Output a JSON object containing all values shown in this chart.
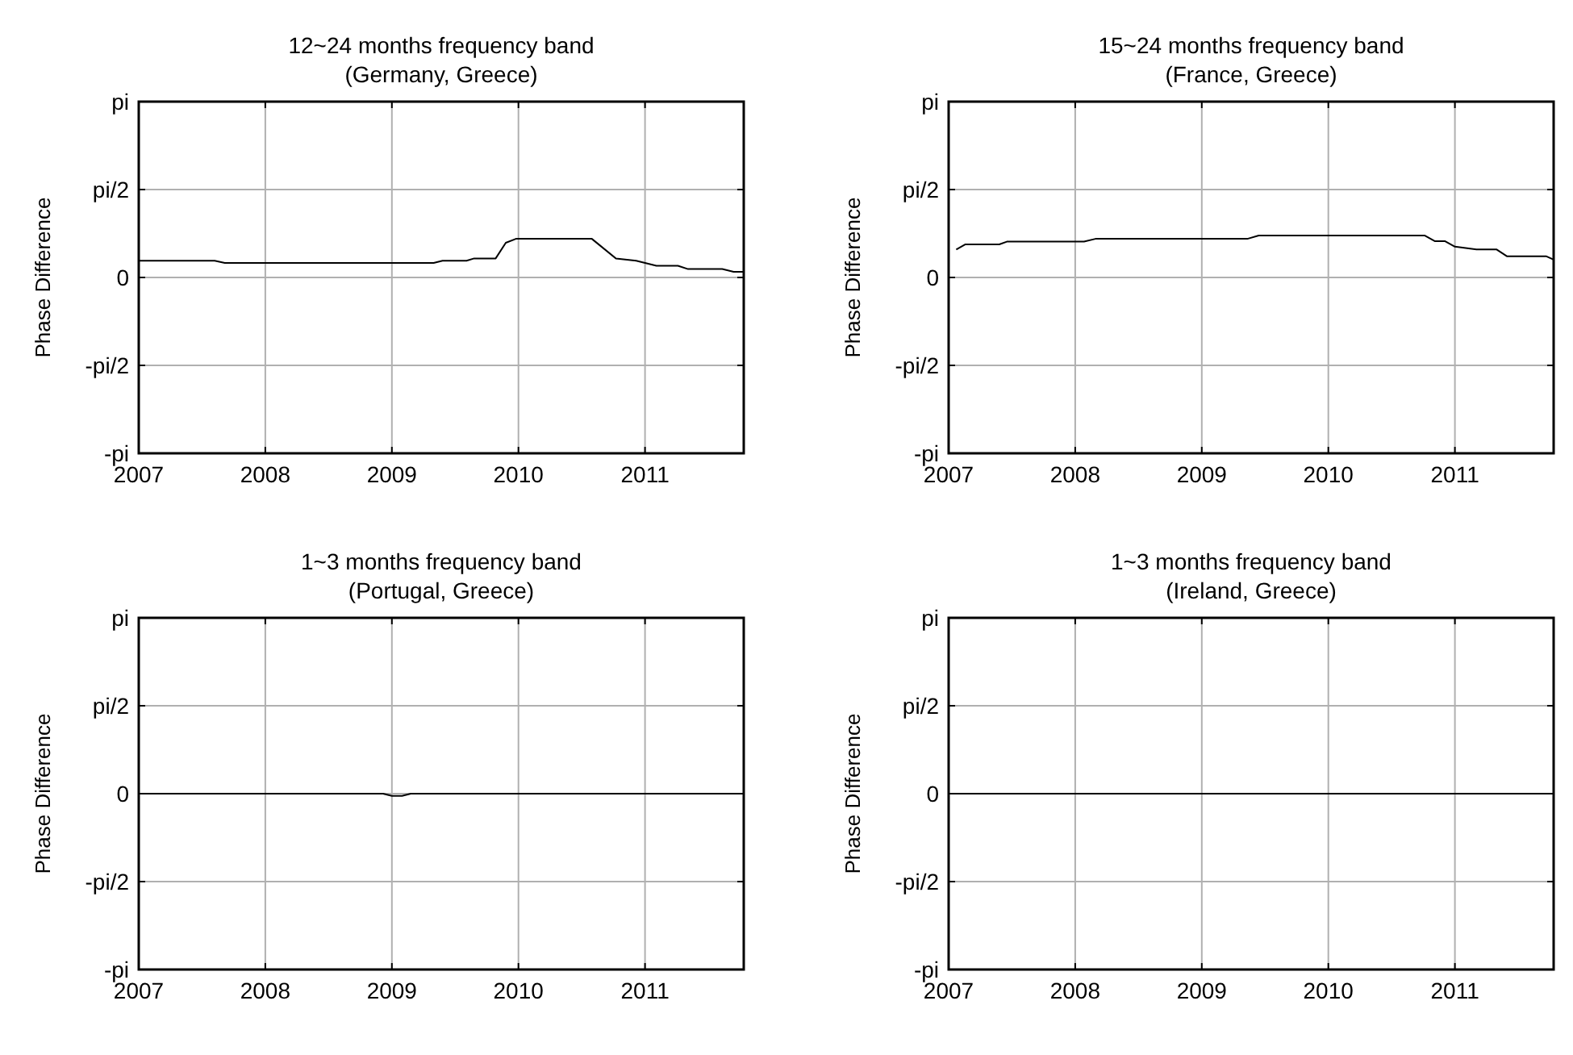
{
  "chart_data": [
    {
      "type": "line",
      "title": "12~24 months frequency band",
      "subtitle": "(Germany, Greece)",
      "ylabel": "Phase Difference",
      "xlim": [
        2007,
        2011.78
      ],
      "xticks": [
        2007,
        2008,
        2009,
        2010,
        2011
      ],
      "ylim": [
        -3.1416,
        3.1416
      ],
      "yticks": [
        {
          "value": -3.1416,
          "label": "-pi"
        },
        {
          "value": -1.5708,
          "label": "-pi/2"
        },
        {
          "value": 0,
          "label": "0"
        },
        {
          "value": 1.5708,
          "label": "pi/2"
        },
        {
          "value": 3.1416,
          "label": "pi"
        }
      ],
      "grid": true,
      "series": [
        {
          "color": "#000000",
          "x": [
            2007.0,
            2007.6,
            2007.68,
            2009.33,
            2009.4,
            2009.59,
            2009.65,
            2009.82,
            2009.9,
            2009.98,
            2010.58,
            2010.77,
            2010.93,
            2011.09,
            2011.26,
            2011.34,
            2011.61,
            2011.7,
            2011.78
          ],
          "values": [
            0.3,
            0.3,
            0.26,
            0.26,
            0.3,
            0.3,
            0.34,
            0.34,
            0.62,
            0.69,
            0.69,
            0.34,
            0.3,
            0.21,
            0.21,
            0.15,
            0.15,
            0.1,
            0.1
          ]
        }
      ]
    },
    {
      "type": "line",
      "title": "15~24 months frequency band",
      "subtitle": "(France, Greece)",
      "ylabel": "Phase Difference",
      "xlim": [
        2007,
        2011.78
      ],
      "xticks": [
        2007,
        2008,
        2009,
        2010,
        2011
      ],
      "ylim": [
        -3.1416,
        3.1416
      ],
      "yticks": [
        {
          "value": -3.1416,
          "label": "-pi"
        },
        {
          "value": -1.5708,
          "label": "-pi/2"
        },
        {
          "value": 0,
          "label": "0"
        },
        {
          "value": 1.5708,
          "label": "pi/2"
        },
        {
          "value": 3.1416,
          "label": "pi"
        }
      ],
      "grid": true,
      "series": [
        {
          "color": "#000000",
          "x": [
            2007.06,
            2007.13,
            2007.4,
            2007.46,
            2008.07,
            2008.16,
            2009.36,
            2009.45,
            2010.76,
            2010.84,
            2010.92,
            2011.0,
            2011.17,
            2011.33,
            2011.41,
            2011.72,
            2011.78
          ],
          "values": [
            0.5,
            0.59,
            0.59,
            0.64,
            0.64,
            0.69,
            0.69,
            0.75,
            0.75,
            0.65,
            0.65,
            0.55,
            0.5,
            0.5,
            0.38,
            0.38,
            0.32
          ]
        }
      ]
    },
    {
      "type": "line",
      "title": "1~3 months frequency band",
      "subtitle": "(Portugal, Greece)",
      "ylabel": "Phase Difference",
      "xlim": [
        2007,
        2011.78
      ],
      "xticks": [
        2007,
        2008,
        2009,
        2010,
        2011
      ],
      "ylim": [
        -3.1416,
        3.1416
      ],
      "yticks": [
        {
          "value": -3.1416,
          "label": "-pi"
        },
        {
          "value": -1.5708,
          "label": "-pi/2"
        },
        {
          "value": 0,
          "label": "0"
        },
        {
          "value": 1.5708,
          "label": "pi/2"
        },
        {
          "value": 3.1416,
          "label": "pi"
        }
      ],
      "grid": true,
      "series": [
        {
          "color": "#000000",
          "x": [
            2007.0,
            2008.93,
            2009.0,
            2009.08,
            2009.15,
            2011.78
          ],
          "values": [
            0,
            0,
            -0.04,
            -0.04,
            0,
            0
          ]
        }
      ]
    },
    {
      "type": "line",
      "title": "1~3 months frequency band",
      "subtitle": "(Ireland, Greece)",
      "ylabel": "Phase Difference",
      "xlim": [
        2007,
        2011.78
      ],
      "xticks": [
        2007,
        2008,
        2009,
        2010,
        2011
      ],
      "ylim": [
        -3.1416,
        3.1416
      ],
      "yticks": [
        {
          "value": -3.1416,
          "label": "-pi"
        },
        {
          "value": -1.5708,
          "label": "-pi/2"
        },
        {
          "value": 0,
          "label": "0"
        },
        {
          "value": 1.5708,
          "label": "pi/2"
        },
        {
          "value": 3.1416,
          "label": "pi"
        }
      ],
      "grid": true,
      "series": [
        {
          "color": "#000000",
          "x": [
            2007.0,
            2011.78
          ],
          "values": [
            0,
            0
          ]
        }
      ]
    }
  ]
}
